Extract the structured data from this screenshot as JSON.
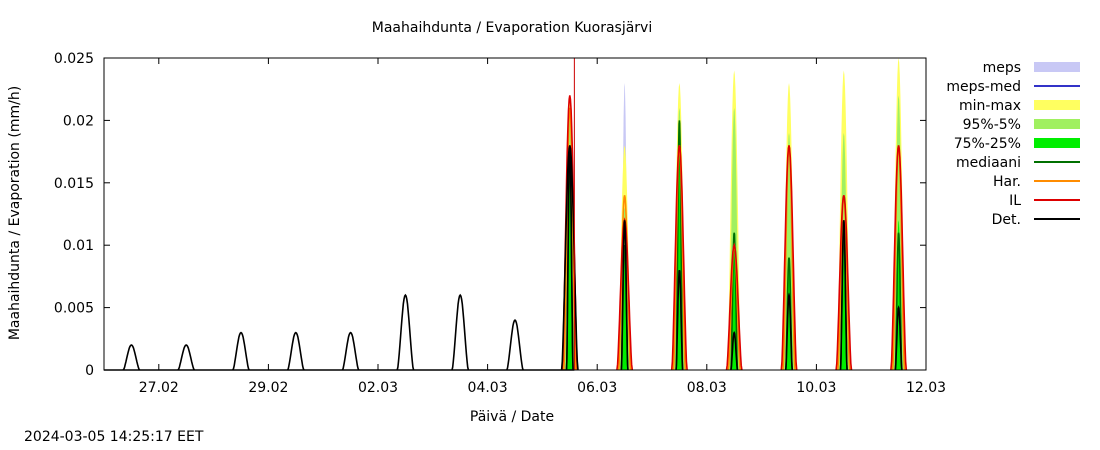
{
  "chart_data": {
    "type": "area",
    "title": "Maahaihdunta / Evaporation  Kuorasjärvi",
    "xlabel": "Päivä / Date",
    "ylabel": "Maahaihdunta / Evaporation (mm/h)",
    "xlim": [
      "2024-02-26 00:00",
      "2024-03-12 00:00"
    ],
    "ylim": [
      0,
      0.025
    ],
    "y_ticks": [
      "0",
      "0.005",
      "0.01",
      "0.015",
      "0.02",
      "0.025"
    ],
    "x_ticks": [
      {
        "date": "2024-02-27",
        "label": "27.02"
      },
      {
        "date": "2024-02-29",
        "label": "29.02"
      },
      {
        "date": "2024-03-02",
        "label": "02.03"
      },
      {
        "date": "2024-03-04",
        "label": "04.03"
      },
      {
        "date": "2024-03-06",
        "label": "06.03"
      },
      {
        "date": "2024-03-08",
        "label": "08.03"
      },
      {
        "date": "2024-03-10",
        "label": "10.03"
      },
      {
        "date": "2024-03-12",
        "label": "12.03"
      }
    ],
    "grid": false,
    "legend_position": "right",
    "forecast_start": "2024-03-05 14:00",
    "forecast_line_color": "#cc0000",
    "legend": [
      {
        "label": "meps",
        "style": "fill",
        "color": "#c8c8f5"
      },
      {
        "label": "meps-med",
        "style": "line",
        "color": "#3232c8"
      },
      {
        "label": "min-max",
        "style": "fill",
        "color": "#ffff60"
      },
      {
        "label": "95%-5%",
        "style": "fill",
        "color": "#a0f060"
      },
      {
        "label": "75%-25%",
        "style": "fill",
        "color": "#00ee00"
      },
      {
        "label": "mediaani",
        "style": "line",
        "color": "#007000"
      },
      {
        "label": "Har.",
        "style": "line",
        "color": "#ff8c00"
      },
      {
        "label": "IL",
        "style": "line",
        "color": "#dd0000"
      },
      {
        "label": "Det.",
        "style": "line",
        "color": "#000000"
      }
    ],
    "observed_det_daily_peaks": [
      {
        "date": "2024-02-26",
        "peak": 0.002
      },
      {
        "date": "2024-02-27",
        "peak": 0.002
      },
      {
        "date": "2024-02-28",
        "peak": 0.003
      },
      {
        "date": "2024-02-29",
        "peak": 0.003
      },
      {
        "date": "2024-03-01",
        "peak": 0.003
      },
      {
        "date": "2024-03-02",
        "peak": 0.006
      },
      {
        "date": "2024-03-03",
        "peak": 0.006
      },
      {
        "date": "2024-03-04",
        "peak": 0.004
      },
      {
        "date": "2024-03-05",
        "peak": 0.018
      }
    ],
    "forecast_daily_peaks": [
      {
        "date": "2024-03-05",
        "minmax": 0.022,
        "p95_5": 0.021,
        "p75_25": 0.017,
        "mediaani": 0.017,
        "meps": 0.0,
        "har": 0.021,
        "il": 0.022,
        "det": 0.018
      },
      {
        "date": "2024-03-06",
        "minmax": 0.018,
        "p95_5": 0.013,
        "p75_25": 0.009,
        "mediaani": 0.01,
        "meps": 0.023,
        "har": 0.014,
        "il": 0.012,
        "det": 0.012
      },
      {
        "date": "2024-03-07",
        "minmax": 0.023,
        "p95_5": 0.021,
        "p75_25": 0.02,
        "mediaani": 0.02,
        "meps": 0.0,
        "har": 0.018,
        "il": 0.018,
        "det": 0.008
      },
      {
        "date": "2024-03-08",
        "minmax": 0.024,
        "p95_5": 0.021,
        "p75_25": 0.01,
        "mediaani": 0.011,
        "meps": 0.0,
        "har": 0.01,
        "il": 0.01,
        "det": 0.003
      },
      {
        "date": "2024-03-09",
        "minmax": 0.023,
        "p95_5": 0.019,
        "p75_25": 0.009,
        "mediaani": 0.009,
        "meps": 0.0,
        "har": 0.018,
        "il": 0.018,
        "det": 0.006
      },
      {
        "date": "2024-03-10",
        "minmax": 0.024,
        "p95_5": 0.019,
        "p75_25": 0.012,
        "mediaani": 0.011,
        "meps": 0.0,
        "har": 0.014,
        "il": 0.014,
        "det": 0.012
      },
      {
        "date": "2024-03-11",
        "minmax": 0.025,
        "p95_5": 0.022,
        "p75_25": 0.012,
        "mediaani": 0.011,
        "meps": 0.0,
        "har": 0.018,
        "il": 0.018,
        "det": 0.005
      }
    ]
  },
  "footer": {
    "timestamp": "2024-03-05 14:25:17 EET"
  }
}
